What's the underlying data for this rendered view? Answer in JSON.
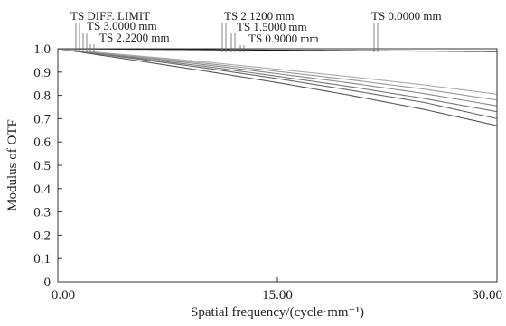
{
  "chart_data": {
    "type": "line",
    "xlabel": "Spatial frequency/(cycle·mm⁻¹)",
    "ylabel": "Modulus of OTF",
    "xlim": [
      0,
      30
    ],
    "ylim": [
      0,
      1.0
    ],
    "x_ticks": [
      "0.00",
      "15.00",
      "30.00"
    ],
    "y_ticks": [
      "0",
      "0.1",
      "0.2",
      "0.3",
      "0.4",
      "0.5",
      "0.6",
      "0.7",
      "0.8",
      "0.9",
      "1.0"
    ],
    "grid": false,
    "legend": [
      {
        "label": "TS DIFF. LIMIT"
      },
      {
        "label": "TS 3.0000 mm"
      },
      {
        "label": "TS 2.2200 mm"
      },
      {
        "label": "TS 2.1200 mm"
      },
      {
        "label": "TS 1.5000 mm"
      },
      {
        "label": "TS 0.9000 mm"
      },
      {
        "label": "TS 0.0000 mm"
      }
    ],
    "x": [
      0,
      5,
      10,
      15,
      20,
      25,
      30
    ],
    "series": [
      {
        "name": "TS DIFF. LIMIT",
        "color": "#111111",
        "values": [
          1.0,
          0.998,
          0.996,
          0.994,
          0.992,
          0.99,
          0.988
        ]
      },
      {
        "name": "TS 3.0000 mm",
        "color": "#555555",
        "values": [
          1.0,
          0.953,
          0.905,
          0.855,
          0.8,
          0.74,
          0.67
        ]
      },
      {
        "name": "TS 2.2200 mm",
        "color": "#666666",
        "values": [
          1.0,
          0.96,
          0.918,
          0.872,
          0.822,
          0.77,
          0.7
        ]
      },
      {
        "name": "TS 2.1200 mm",
        "color": "#777777",
        "values": [
          1.0,
          0.963,
          0.925,
          0.882,
          0.837,
          0.787,
          0.73
        ]
      },
      {
        "name": "TS 1.5000 mm",
        "color": "#888888",
        "values": [
          1.0,
          0.967,
          0.932,
          0.893,
          0.853,
          0.808,
          0.755
        ]
      },
      {
        "name": "TS 0.9000 mm",
        "color": "#999999",
        "values": [
          1.0,
          0.97,
          0.938,
          0.903,
          0.867,
          0.827,
          0.78
        ]
      },
      {
        "name": "TS 0.0000 mm",
        "color": "#aaaaaa",
        "values": [
          1.0,
          0.972,
          0.944,
          0.912,
          0.88,
          0.845,
          0.805
        ]
      }
    ]
  }
}
